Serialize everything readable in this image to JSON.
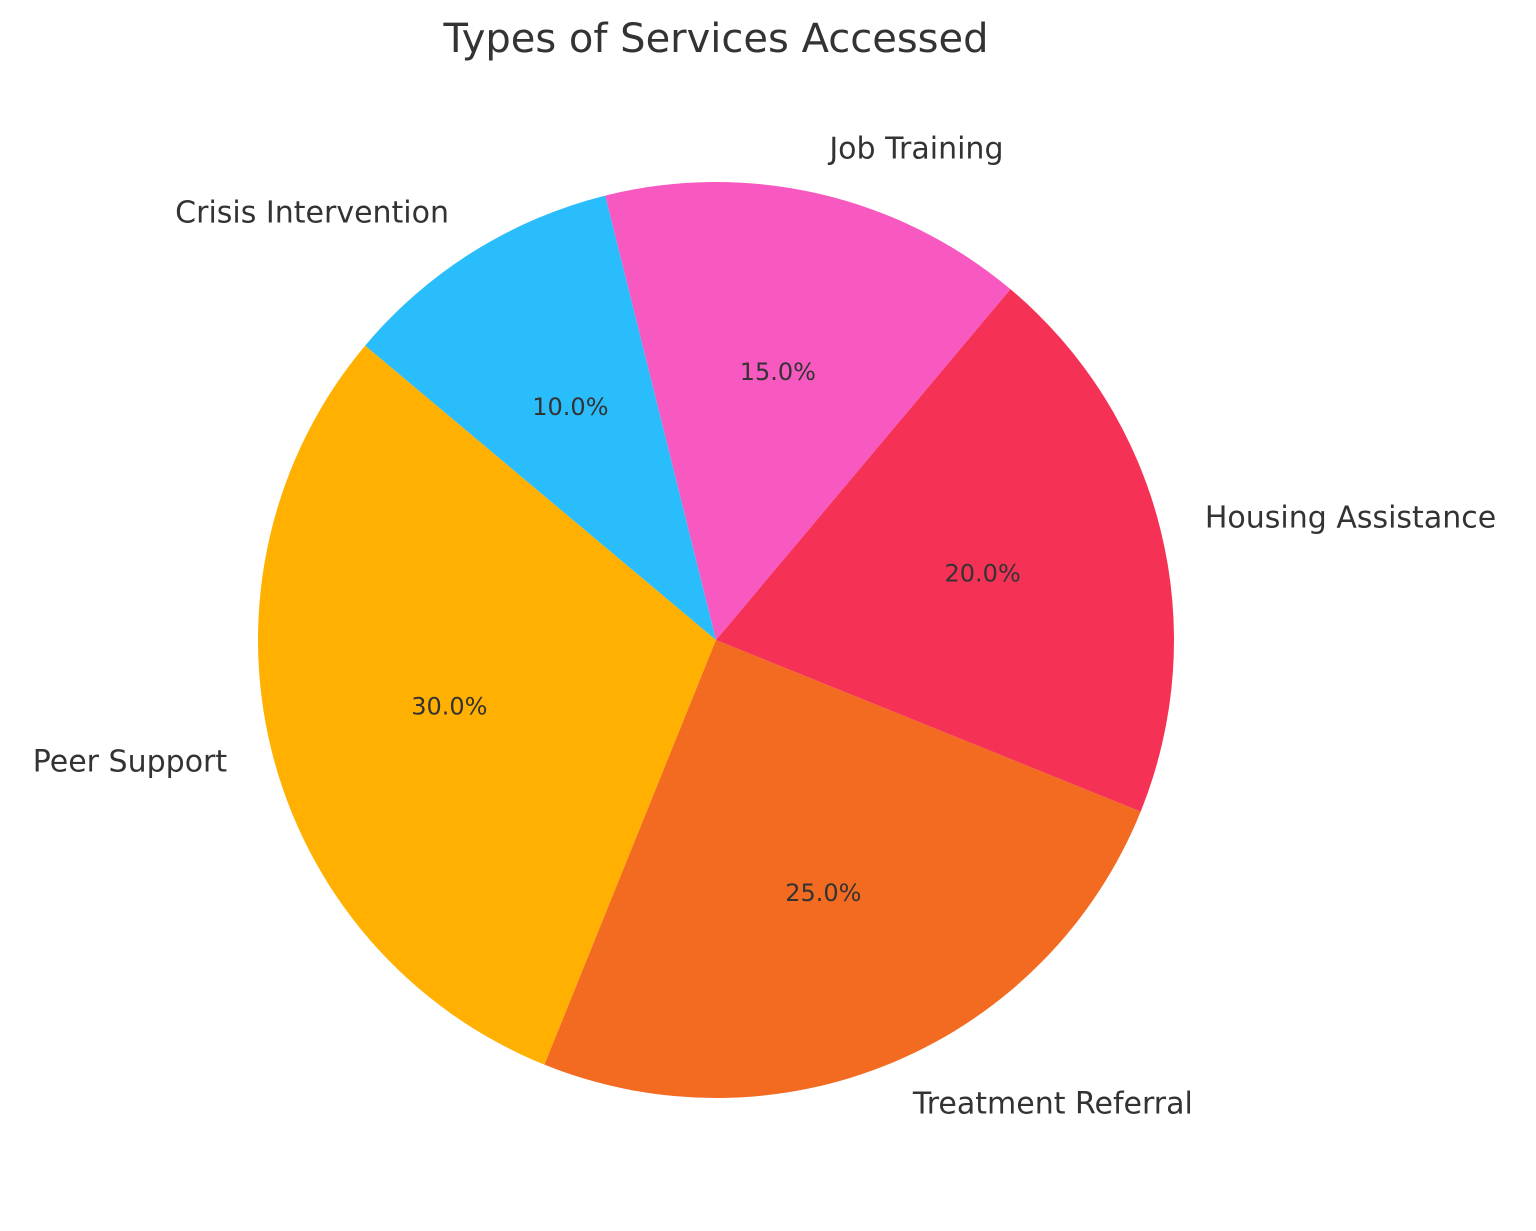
{
  "chart_data": {
    "type": "pie",
    "title": "Types of Services Accessed",
    "start_angle_deg": 140,
    "direction": "counterclockwise",
    "slices": [
      {
        "label": "Peer Support",
        "value": 30.0,
        "pct_text": "30.0%",
        "color": "#FFB000"
      },
      {
        "label": "Treatment Referral",
        "value": 25.0,
        "pct_text": "25.0%",
        "color": "#F26B21"
      },
      {
        "label": "Housing Assistance",
        "value": 20.0,
        "pct_text": "20.0%",
        "color": "#F53256"
      },
      {
        "label": "Job Training",
        "value": 15.0,
        "pct_text": "15.0%",
        "color": "#F759C1"
      },
      {
        "label": "Crisis Intervention",
        "value": 10.0,
        "pct_text": "10.0%",
        "color": "#29BDFB"
      }
    ]
  }
}
